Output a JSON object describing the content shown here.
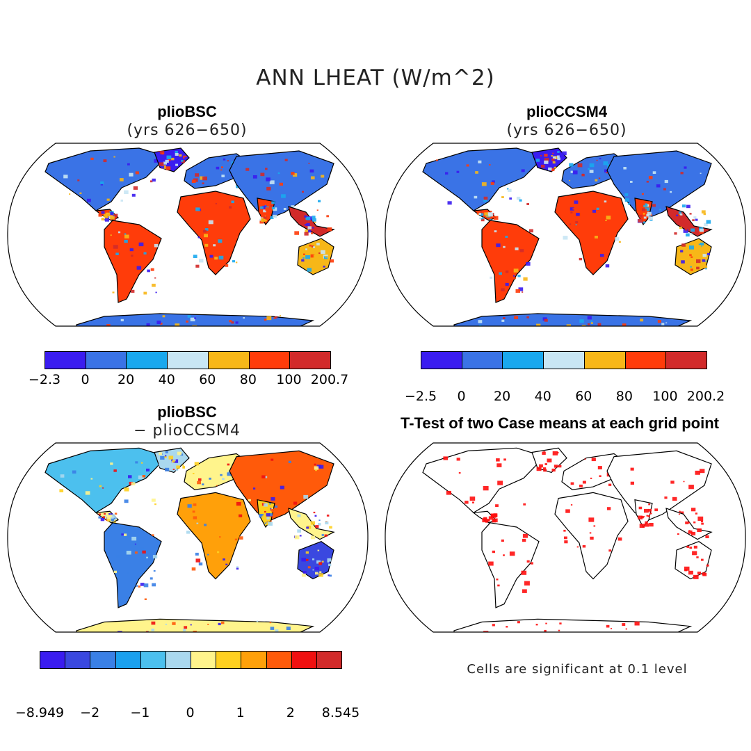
{
  "main_title": "ANN LHEAT (W/m^2)",
  "panels": {
    "top_left": {
      "title": "plioBSC",
      "subtitle": "(yrs 626−650)"
    },
    "top_right": {
      "title": "plioCCSM4",
      "subtitle": "(yrs 626−650)"
    },
    "bottom_left": {
      "title": "plioBSC",
      "subtitle": "− plioCCSM4"
    },
    "bottom_right": {
      "title": "T-Test of two Case means at each grid point"
    }
  },
  "colorbars": {
    "top_left": {
      "colors": [
        "#3a1cf0",
        "#3a73e6",
        "#1aa8ee",
        "#c8e6f4",
        "#f7b718",
        "#ff3c0a",
        "#d22a2a"
      ],
      "ticks": [
        "−2.3",
        "0",
        "20",
        "40",
        "60",
        "80",
        "100",
        "200.7"
      ]
    },
    "top_right": {
      "colors": [
        "#3a1cf0",
        "#3a73e6",
        "#1aa8ee",
        "#c8e6f4",
        "#f7b718",
        "#ff3c0a",
        "#d22a2a"
      ],
      "ticks": [
        "−2.5",
        "0",
        "20",
        "40",
        "60",
        "80",
        "100",
        "200.2"
      ]
    },
    "bottom_left": {
      "colors": [
        "#3a1cf0",
        "#3a48e0",
        "#3a80e6",
        "#1aa0ee",
        "#4cc0ee",
        "#aad8ee",
        "#fff48c",
        "#ffd020",
        "#ffa00a",
        "#ff5a0a",
        "#f01010",
        "#d22a2a"
      ],
      "ticks": [
        "−8.949",
        "−2",
        "−1",
        "0",
        "1",
        "2",
        "8.545"
      ]
    }
  },
  "note": "Cells are significant at 0.1 level"
}
